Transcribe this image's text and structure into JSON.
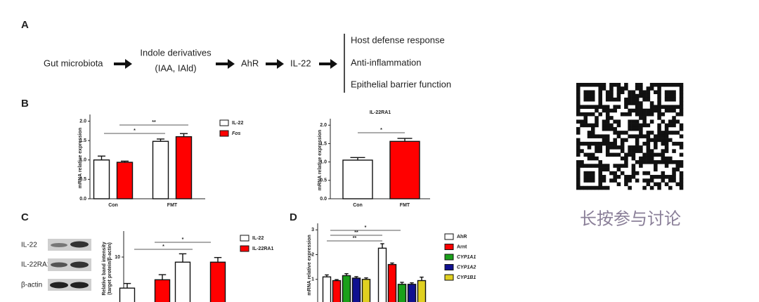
{
  "diagram": {
    "label": "A",
    "nodes": [
      "Gut microbiota",
      "Indole derivatives",
      "(IAA, IAld)",
      "AhR",
      "IL-22"
    ],
    "outcomes": [
      "Host defense response",
      "Anti-inflammation",
      "Epithelial barrier function"
    ]
  },
  "chart_data": [
    {
      "type": "bar",
      "panel_label": "B",
      "ylabel": [
        "mRNA relative expression"
      ],
      "categories": [
        "Con",
        "FMT"
      ],
      "series": [
        {
          "name": "IL-22",
          "color": "#ffffff",
          "values": [
            1.0,
            1.48
          ],
          "errors": [
            0.1,
            0.06
          ]
        },
        {
          "name": "Fos",
          "color": "#ff0000",
          "values": [
            0.94,
            1.6
          ],
          "errors": [
            0.03,
            0.08
          ]
        }
      ],
      "ylim": [
        0,
        2.1
      ],
      "yticks": [
        {
          "value": 0,
          "label": "0.0"
        },
        0.5,
        {
          "value": 1,
          "label": "1.0"
        },
        1.5,
        {
          "value": 2,
          "label": "2.0"
        }
      ],
      "significance": [
        "*",
        "**"
      ]
    },
    {
      "type": "bar",
      "title": "IL-22RA1",
      "ylabel": [
        "mRNA relative expression"
      ],
      "categories": [
        "Con",
        "FMT"
      ],
      "values": [
        1.05,
        1.56
      ],
      "errors": [
        0.07,
        0.08
      ],
      "colors": [
        "#ffffff",
        "#ff0000"
      ],
      "ylim": [
        0,
        2.1
      ],
      "yticks": [
        {
          "value": 0,
          "label": "0.0"
        },
        0.5,
        {
          "value": 1,
          "label": "1.0"
        },
        1.5,
        {
          "value": 2,
          "label": "2.0"
        }
      ],
      "significance": [
        "*"
      ]
    },
    {
      "type": "bar",
      "panel_label": "C",
      "blot_labels": [
        "IL-22",
        "IL-22RA1",
        "β-actin"
      ],
      "ylabel": [
        "Relative band intensity",
        "(target protein/β-actin)"
      ],
      "categories": [
        null,
        null
      ],
      "series": [
        {
          "name": "IL-22",
          "color": "#ffffff",
          "values": [
            3.3,
            8.9
          ],
          "errors": [
            1.0,
            1.8
          ]
        },
        {
          "name": "IL-22RA1",
          "color": "#ff0000",
          "values": [
            5.1,
            8.9
          ],
          "errors": [
            1.1,
            1.0
          ]
        }
      ],
      "ylim": [
        0,
        15
      ],
      "yticks": [
        10
      ],
      "significance": [
        "*",
        "*"
      ]
    },
    {
      "type": "bar",
      "panel_label": "D",
      "ylabel": [
        "mRNA relative expression"
      ],
      "categories": [
        null,
        null
      ],
      "series": [
        {
          "name": "AhR",
          "color": "#ffffff",
          "values": [
            1.1,
            2.26
          ],
          "errors": [
            0.08,
            0.18
          ]
        },
        {
          "name": "Arnt",
          "color": "#ff0000",
          "values": [
            0.95,
            1.6
          ],
          "errors": [
            0.04,
            0.06
          ]
        },
        {
          "name": "CYP1A1",
          "color": "#1aa01a",
          "values": [
            1.15,
            0.8
          ],
          "errors": [
            0.08,
            0.08
          ]
        },
        {
          "name": "CYP1A2",
          "color": "#101090",
          "values": [
            1.05,
            0.8
          ],
          "errors": [
            0.06,
            0.06
          ]
        },
        {
          "name": "CYP1B1",
          "color": "#e0d020",
          "values": [
            1.0,
            0.95
          ],
          "errors": [
            0.06,
            0.14
          ]
        }
      ],
      "ylim": [
        0,
        3.15
      ],
      "yticks": [
        1,
        2,
        3
      ],
      "significance": [
        "*",
        "**",
        "**"
      ]
    }
  ],
  "qr_caption": "长按参与讨论"
}
